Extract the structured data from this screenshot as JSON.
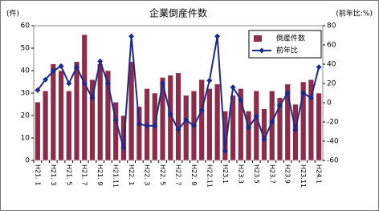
{
  "chart_data": {
    "type": "bar-line",
    "title": "企業倒産件数",
    "y_unit": "(件)",
    "y2_unit": "(前年比:%)",
    "categories": [
      "H21. 1",
      null,
      "H21. 3",
      null,
      "H21. 5",
      null,
      "H21. 7",
      null,
      "H21. 9",
      null,
      "H21.11",
      null,
      "H22. 1",
      null,
      "H22. 3",
      null,
      "H22. 5",
      null,
      "H22. 7",
      null,
      "H22. 9",
      null,
      "H22.11",
      null,
      "H23.1",
      null,
      "H23.3",
      null,
      "H23.5",
      null,
      "H23.7",
      null,
      "H23.9",
      null,
      "H23.11",
      null,
      "H24.1"
    ],
    "series": [
      {
        "name": "倒産件数",
        "color": "#8b2d4a",
        "values": [
          26,
          31,
          43,
          40,
          31,
          44,
          56,
          36,
          43,
          40,
          26,
          20,
          44,
          24,
          32,
          30,
          37,
          38,
          39,
          29,
          31,
          36,
          32,
          34,
          22,
          29,
          32,
          22,
          31,
          23,
          31,
          28,
          34,
          25,
          35,
          36,
          30
        ]
      },
      {
        "name": "前年比",
        "color": "#1c2a8c",
        "axis": "y2",
        "values": [
          13,
          24,
          33,
          38,
          20,
          37,
          20,
          5,
          43,
          20,
          -18,
          -47,
          69,
          -22,
          -24,
          -24,
          20,
          -12,
          -28,
          -18,
          -24,
          -8,
          23,
          69,
          -50,
          16,
          3,
          -26,
          -14,
          -38,
          -20,
          -3,
          10,
          -28,
          10,
          5,
          37
        ]
      }
    ],
    "ylim": [
      0,
      60
    ],
    "yticks": [
      0,
      10,
      20,
      30,
      40,
      50,
      60
    ],
    "y2lim": [
      -60,
      80
    ],
    "y2ticks": [
      -60,
      -40,
      -20,
      0,
      20,
      40,
      60,
      80
    ],
    "grid": false
  }
}
